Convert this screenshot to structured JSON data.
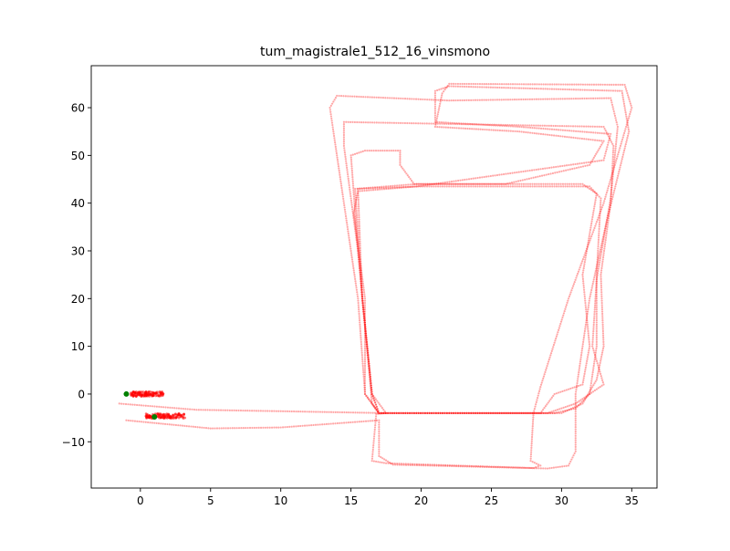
{
  "chart_data": {
    "type": "scatter",
    "title": "tum_magistrale1_512_16_vinsmono",
    "xlabel": "",
    "ylabel": "",
    "xlim": [
      -3.5,
      36.8
    ],
    "ylim": [
      -19.7,
      68.8
    ],
    "x_ticks": [
      0,
      5,
      10,
      15,
      20,
      25,
      30,
      35
    ],
    "y_ticks": [
      -10,
      0,
      10,
      20,
      30,
      40,
      50,
      60
    ],
    "grid": false,
    "legend": "none",
    "trajectory_color": "#ff0000",
    "marker_color": "#008000",
    "trajectory": {
      "loops": [
        {
          "name": "",
          "points": [
            [
              -1.5,
              -2
            ],
            [
              4,
              -3.3
            ],
            [
              10,
              -3.6
            ],
            [
              17.5,
              -4
            ],
            [
              16.8,
              -4.2
            ],
            [
              16.5,
              -14
            ],
            [
              17.5,
              -14.5
            ],
            [
              28,
              -15.5
            ],
            [
              28.5,
              -15
            ],
            [
              27.8,
              -14
            ],
            [
              28,
              -4
            ],
            [
              28.5,
              1.5
            ],
            [
              30.5,
              20
            ],
            [
              33,
              40
            ],
            [
              35,
              60
            ],
            [
              34.5,
              64.8
            ],
            [
              22,
              65
            ],
            [
              21.5,
              63
            ],
            [
              21,
              56
            ],
            [
              27,
              55
            ],
            [
              33,
              53
            ],
            [
              32,
              48
            ],
            [
              26,
              44
            ],
            [
              19.5,
              44
            ],
            [
              18.5,
              48
            ],
            [
              18.5,
              51
            ],
            [
              16,
              51
            ],
            [
              15,
              50
            ],
            [
              15.5,
              30
            ],
            [
              16.5,
              -2
            ],
            [
              17,
              -4.2
            ]
          ]
        },
        {
          "name": "",
          "points": [
            [
              -1,
              -5.5
            ],
            [
              5,
              -7.2
            ],
            [
              10,
              -7
            ],
            [
              17,
              -5.5
            ],
            [
              17,
              -13
            ],
            [
              18,
              -14.8
            ],
            [
              29,
              -15.6
            ],
            [
              30.5,
              -15
            ],
            [
              31,
              -12
            ],
            [
              31,
              0
            ],
            [
              32,
              20
            ],
            [
              33.2,
              36
            ],
            [
              34.8,
              55
            ],
            [
              34.3,
              63.5
            ],
            [
              22,
              64.5
            ],
            [
              21,
              63.5
            ],
            [
              21,
              57
            ],
            [
              27,
              56
            ],
            [
              33.5,
              54.5
            ],
            [
              33,
              49
            ],
            [
              19.7,
              43.5
            ],
            [
              15.5,
              42.5
            ],
            [
              15.2,
              38
            ],
            [
              16,
              20
            ],
            [
              16,
              0
            ],
            [
              17,
              -4
            ]
          ]
        },
        {
          "name": "",
          "points": [
            [
              17,
              -4
            ],
            [
              29,
              -4
            ],
            [
              31,
              -2
            ],
            [
              33,
              2
            ],
            [
              32.2,
              10
            ],
            [
              32.5,
              24
            ],
            [
              33.5,
              41
            ],
            [
              34,
              56
            ],
            [
              33.5,
              62
            ],
            [
              22,
              61.5
            ],
            [
              14,
              62.5
            ],
            [
              13.5,
              60
            ],
            [
              14.5,
              40
            ],
            [
              15.5,
              20
            ],
            [
              16,
              0
            ],
            [
              17,
              -4
            ]
          ]
        },
        {
          "name": "",
          "points": [
            [
              17,
              -4
            ],
            [
              30,
              -4
            ],
            [
              31.5,
              -2
            ],
            [
              32.5,
              3
            ],
            [
              33,
              10
            ],
            [
              32.8,
              25
            ],
            [
              33.5,
              40
            ],
            [
              33.7,
              52
            ],
            [
              33,
              56
            ],
            [
              14.5,
              57
            ],
            [
              14.5,
              52
            ],
            [
              15.5,
              30
            ],
            [
              16.5,
              0
            ],
            [
              17,
              -4
            ]
          ]
        },
        {
          "name": "",
          "points": [
            [
              17,
              -4
            ],
            [
              29.5,
              -4
            ],
            [
              31,
              -3
            ],
            [
              32,
              0
            ],
            [
              32.5,
              10
            ],
            [
              32.5,
              25
            ],
            [
              32.8,
              41
            ],
            [
              32,
              43.5
            ],
            [
              19.8,
              43.5
            ],
            [
              15.5,
              43
            ],
            [
              15.8,
              20
            ],
            [
              16.5,
              0
            ],
            [
              17,
              -4
            ]
          ]
        },
        {
          "name": "",
          "points": [
            [
              17.5,
              -4
            ],
            [
              28.5,
              -4
            ],
            [
              29.5,
              0
            ],
            [
              31.5,
              2
            ],
            [
              32,
              10
            ],
            [
              31.5,
              25
            ],
            [
              32.5,
              42
            ],
            [
              31.5,
              44
            ],
            [
              19.7,
              44
            ],
            [
              15.3,
              43
            ],
            [
              15.8,
              20
            ],
            [
              16.5,
              0
            ],
            [
              17.5,
              -4
            ]
          ]
        }
      ],
      "clusters": [
        {
          "name": "",
          "center": [
            0.5,
            0
          ],
          "spread": [
            1.2,
            0.5
          ]
        },
        {
          "name": "",
          "center": [
            1.8,
            -4.6
          ],
          "spread": [
            1.4,
            0.5
          ]
        }
      ]
    },
    "start_marker": {
      "x": -1,
      "y": 0
    },
    "end_marker": {
      "x": 1,
      "y": -4.8
    }
  }
}
